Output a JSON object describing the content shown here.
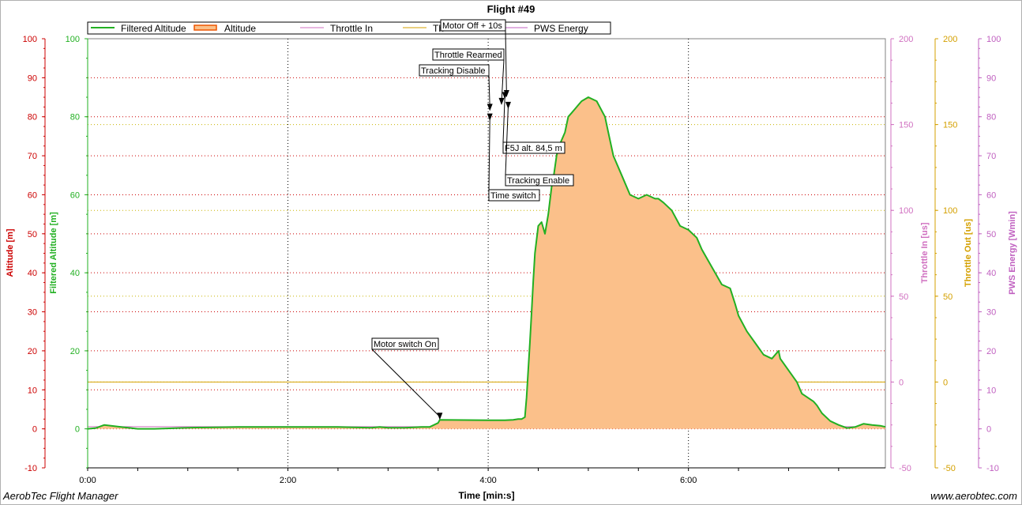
{
  "chart_data": {
    "type": "area",
    "title": "Flight #49",
    "xlabel": "Time [min:s]",
    "xlim": [
      0,
      478
    ],
    "x_ticks": [
      {
        "v": 0,
        "label": "0:00"
      },
      {
        "v": 120,
        "label": "2:00"
      },
      {
        "v": 240,
        "label": "4:00"
      },
      {
        "v": 360,
        "label": "6:00"
      }
    ],
    "axes": [
      {
        "id": "alt",
        "label": "Altitude [m]",
        "color": "#cc0000",
        "ylim": [
          -10,
          100
        ],
        "ticks": [
          -10,
          0,
          10,
          20,
          30,
          40,
          50,
          60,
          70,
          80,
          90,
          100
        ]
      },
      {
        "id": "falt",
        "label": "Filtered Altitude [m]",
        "color": "#22b022",
        "ylim": [
          -10,
          100
        ],
        "ticks": [
          0,
          20,
          40,
          60,
          80,
          100
        ]
      },
      {
        "id": "thr_in",
        "label": "Throttle In [us]",
        "color": "#d070c0",
        "ylim": [
          -50,
          200
        ],
        "ticks": [
          -50,
          0,
          50,
          100,
          150,
          200
        ]
      },
      {
        "id": "thr_out",
        "label": "Throttle Out [us]",
        "color": "#d4a000",
        "ylim": [
          -50,
          200
        ],
        "ticks": [
          -50,
          0,
          50,
          100,
          150,
          200
        ]
      },
      {
        "id": "pws",
        "label": "PWS Energy [Wmin]",
        "color": "#c060c0",
        "ylim": [
          -10,
          100
        ],
        "ticks": [
          -10,
          0,
          10,
          20,
          30,
          40,
          50,
          60,
          70,
          80,
          90,
          100
        ]
      }
    ],
    "legend": [
      {
        "name": "Filtered Altitude",
        "color": "#22b022",
        "style": "line"
      },
      {
        "name": "Altitude",
        "color": "#ee5500",
        "style": "area"
      },
      {
        "name": "Throttle In",
        "color": "#d070c0",
        "style": "line"
      },
      {
        "name": "Th",
        "color": "#d4a000",
        "style": "line"
      },
      {
        "name": "PWS Energy",
        "color": "#c060c0",
        "style": "line"
      }
    ],
    "series": [
      {
        "name": "Altitude",
        "axis": "alt",
        "fill": "#fbc08a",
        "x": [
          0,
          5,
          10,
          20,
          30,
          40,
          60,
          90,
          120,
          150,
          170,
          175,
          180,
          190,
          200,
          205,
          210,
          211,
          240,
          250,
          255,
          258,
          260,
          262,
          263,
          264,
          265,
          266,
          267,
          268,
          270,
          272,
          274,
          276,
          278,
          279,
          280,
          281,
          282,
          283,
          284,
          285,
          286,
          287,
          288,
          290,
          292,
          294,
          296,
          300,
          305,
          310,
          312,
          315,
          320,
          325,
          330,
          335,
          340,
          342,
          345,
          350,
          355,
          360,
          365,
          368,
          372,
          376,
          380,
          385,
          388,
          390,
          395,
          400,
          405,
          410,
          414,
          415,
          420,
          425,
          427,
          428,
          435,
          437,
          440,
          445,
          450,
          455,
          460,
          465,
          470,
          475,
          478
        ],
        "y": [
          0,
          0.2,
          1,
          0.5,
          0,
          0,
          0.3,
          0.5,
          0.5,
          0.5,
          0.3,
          0.5,
          0.3,
          0.3,
          0.5,
          0.5,
          1.5,
          2.3,
          2.2,
          2.2,
          2.3,
          2.5,
          2.5,
          3,
          8,
          15,
          22,
          30,
          38,
          45,
          52,
          53,
          50,
          55,
          62,
          64,
          67,
          70,
          72,
          73,
          74,
          75,
          76,
          78,
          80,
          81,
          82,
          83,
          84,
          85,
          84,
          80,
          76,
          70,
          65,
          60,
          59,
          60,
          59,
          59,
          58,
          56,
          52,
          51,
          49,
          46,
          43,
          40,
          37,
          36,
          32,
          29,
          25,
          22,
          19,
          18,
          20,
          18,
          15,
          12,
          10,
          9,
          7,
          6,
          4,
          2,
          1,
          0.2,
          0.5,
          1.3,
          1,
          0.8,
          0.5
        ]
      }
    ],
    "constant_lines": [
      {
        "name": "Th",
        "axis": "thr_out",
        "value": 0,
        "color": "#d4a000"
      },
      {
        "name": "Throttle In",
        "axis": "thr_in",
        "value": -26,
        "color": "#d070c0"
      }
    ],
    "annotations": [
      {
        "label": "Motor switch On",
        "x": 211,
        "y": 2.3
      },
      {
        "label": "Tracking Disable",
        "x": 241,
        "y": 81.5
      },
      {
        "label": "Time switch",
        "x": 241,
        "y": 79
      },
      {
        "label": "Throttle Rearmed",
        "x": 248,
        "y": 83
      },
      {
        "label": "F5J alt. 84,5 m",
        "x": 250,
        "y": 84.5
      },
      {
        "label": "Tracking Enable",
        "x": 252,
        "y": 82
      },
      {
        "label": "Motor Off + 10s",
        "x": 251,
        "y": 85
      }
    ]
  },
  "footer": {
    "left": "AerobTec Flight Manager",
    "right": "www.aerobtec.com"
  }
}
